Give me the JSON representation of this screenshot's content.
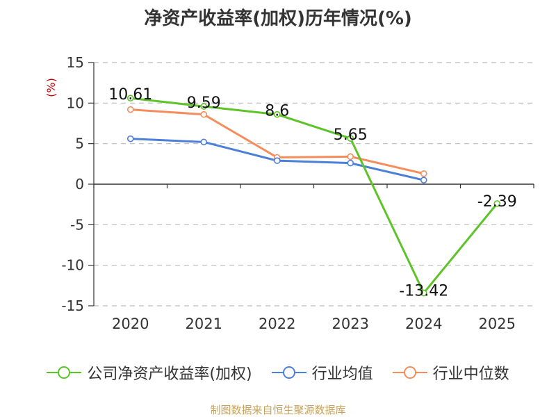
{
  "chart_data": {
    "type": "line",
    "title": "净资产收益率(加权)历年情况(%)",
    "ylabel": "(%)",
    "xlabel": "",
    "categories": [
      "2020",
      "2021",
      "2022",
      "2023",
      "2024",
      "2025"
    ],
    "ylim": [
      -15,
      15
    ],
    "yticks": [
      15,
      10,
      5,
      0,
      -5,
      -10,
      -15
    ],
    "grid": true,
    "legend_position": "bottom",
    "series": [
      {
        "name": "公司净资产收益率(加权)",
        "color": "#5dc427",
        "values": [
          10.61,
          9.59,
          8.6,
          5.65,
          -13.42,
          -2.39
        ],
        "labels": [
          "10.61",
          "9.59",
          "8.6",
          "5.65",
          "-13.42",
          "-2.39"
        ]
      },
      {
        "name": "行业均值",
        "color": "#4b7fd8",
        "values": [
          5.6,
          5.2,
          2.9,
          2.6,
          0.5,
          null
        ]
      },
      {
        "name": "行业中位数",
        "color": "#f68c5c",
        "values": [
          9.2,
          8.6,
          3.3,
          3.4,
          1.3,
          null
        ]
      }
    ],
    "source": "制图数据来自恒生聚源数据库"
  }
}
